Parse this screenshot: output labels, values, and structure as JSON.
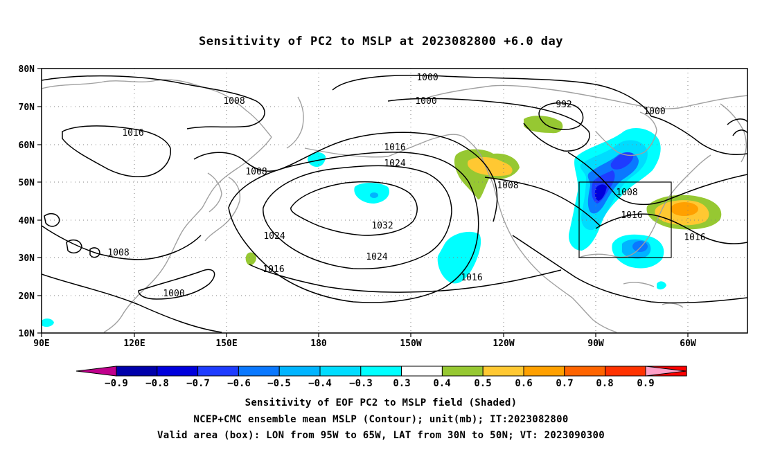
{
  "title": "Sensitivity of PC2 to MSLP at 2023082800 +6.0 day",
  "lat_labels": [
    "80N",
    "70N",
    "60N",
    "50N",
    "40N",
    "30N",
    "20N",
    "10N"
  ],
  "lon_labels": [
    "90E",
    "120E",
    "150E",
    "180",
    "150W",
    "120W",
    "90W",
    "60W"
  ],
  "contour_labels": [
    "1000",
    "1000",
    "1008",
    "1016",
    "1008",
    "1016",
    "1024",
    "992",
    "1000",
    "1008",
    "1008",
    "1016",
    "1016",
    "1024",
    "1032",
    "1024",
    "1008",
    "1016",
    "1016",
    "1000"
  ],
  "colorbar": {
    "colors": [
      "#c0008c",
      "#0000aa",
      "#0000dc",
      "#1e3cff",
      "#0a78ff",
      "#00b4ff",
      "#00dcff",
      "#00ffff",
      "#ffffff",
      "#96c832",
      "#ffc832",
      "#ffa000",
      "#ff6400",
      "#ff3200",
      "#ff0000",
      "#ffa0c8"
    ],
    "labels": [
      "−0.9",
      "−0.8",
      "−0.7",
      "−0.6",
      "−0.5",
      "−0.4",
      "−0.3",
      "0.3",
      "0.4",
      "0.5",
      "0.6",
      "0.7",
      "0.8",
      "0.9"
    ]
  },
  "valid_area_box": {
    "lon_west": "95W",
    "lon_east": "65W",
    "lat_south": "30N",
    "lat_north": "50N"
  },
  "captions": [
    "Sensitivity of EOF PC2 to MSLP field (Shaded)",
    "NCEP+CMC ensemble mean MSLP (Contour); unit(mb); IT:2023082800",
    "Valid area (box): LON from 95W to 65W, LAT from 30N to 50N; VT: 2023090300"
  ]
}
